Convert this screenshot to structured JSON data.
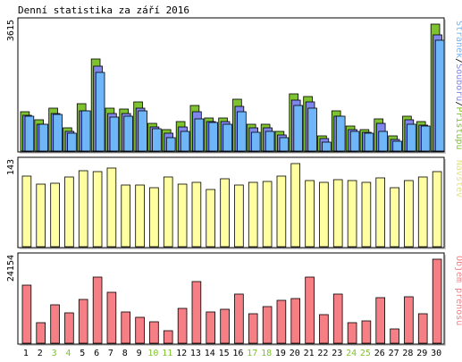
{
  "title": "Denní statistika za září 2016",
  "colors": {
    "green": "#7fc230",
    "blue": "#7f86ec",
    "lightblue": "#6fb6f8",
    "yellow": "#ffffa2",
    "red": "#f67f85",
    "weekend": "#7fc230",
    "day": "#000000",
    "legend_green": "#7fc230",
    "legend_blue": "#7f86ec",
    "legend_lightblue": "#6fb6f8",
    "legend_yellow": "#e3e37f",
    "legend_red": "#f67f85",
    "border": "#000000"
  },
  "chart_data": [
    {
      "type": "bar",
      "y_max_label": "3615",
      "ylim": [
        0,
        3615
      ],
      "legend": [
        "Stránek",
        "Souborů",
        "Přístupů"
      ],
      "categories": [
        "1",
        "2",
        "3",
        "4",
        "5",
        "6",
        "7",
        "8",
        "9",
        "10",
        "11",
        "12",
        "13",
        "14",
        "15",
        "16",
        "17",
        "18",
        "19",
        "20",
        "21",
        "22",
        "23",
        "24",
        "25",
        "26",
        "27",
        "28",
        "29",
        "30"
      ],
      "series": [
        {
          "name": "Přístupů",
          "values": [
            1110,
            900,
            1230,
            650,
            1360,
            2620,
            1230,
            1200,
            1410,
            800,
            620,
            840,
            1290,
            930,
            950,
            1470,
            760,
            770,
            560,
            1620,
            1560,
            430,
            1140,
            720,
            620,
            920,
            440,
            1000,
            850,
            3615
          ]
        },
        {
          "name": "Souborů",
          "values": [
            1010,
            770,
            1080,
            550,
            1140,
            2420,
            1070,
            1060,
            1210,
            690,
            510,
            700,
            1120,
            840,
            830,
            1280,
            670,
            650,
            460,
            1440,
            1410,
            350,
            1000,
            620,
            530,
            800,
            340,
            880,
            750,
            3310
          ]
        },
        {
          "name": "Stránek",
          "values": [
            1000,
            760,
            1050,
            520,
            1140,
            2230,
            970,
            1000,
            1150,
            640,
            380,
            560,
            920,
            820,
            760,
            1130,
            540,
            560,
            390,
            1300,
            1230,
            260,
            1000,
            560,
            500,
            570,
            270,
            770,
            710,
            3160
          ]
        }
      ]
    },
    {
      "type": "bar",
      "y_max_label": "143",
      "ylim": [
        0,
        143
      ],
      "legend": [
        "Návštěv"
      ],
      "categories": [
        "1",
        "2",
        "3",
        "4",
        "5",
        "6",
        "7",
        "8",
        "9",
        "10",
        "11",
        "12",
        "13",
        "14",
        "15",
        "16",
        "17",
        "18",
        "19",
        "20",
        "21",
        "22",
        "23",
        "24",
        "25",
        "26",
        "27",
        "28",
        "29",
        "30"
      ],
      "series": [
        {
          "name": "Návštěv",
          "values": [
            121,
            108,
            109,
            120,
            131,
            129,
            135,
            106,
            106,
            101,
            120,
            108,
            111,
            99,
            117,
            106,
            111,
            112,
            122,
            143,
            114,
            111,
            115,
            114,
            111,
            118,
            101,
            114,
            120,
            129
          ]
        }
      ]
    },
    {
      "type": "bar",
      "y_max_label": "24154",
      "ylim": [
        0,
        24154
      ],
      "legend": [
        "Objem přenosu"
      ],
      "categories": [
        "1",
        "2",
        "3",
        "4",
        "5",
        "6",
        "7",
        "8",
        "9",
        "10",
        "11",
        "12",
        "13",
        "14",
        "15",
        "16",
        "17",
        "18",
        "19",
        "20",
        "21",
        "22",
        "23",
        "24",
        "25",
        "26",
        "27",
        "28",
        "29",
        "30"
      ],
      "series": [
        {
          "name": "Objem přenosu",
          "values": [
            16600,
            5900,
            11100,
            8700,
            12700,
            19100,
            14700,
            9000,
            7400,
            6100,
            3500,
            9900,
            17700,
            9100,
            9700,
            14200,
            8400,
            10500,
            12400,
            12900,
            19100,
            8100,
            14100,
            5900,
            6400,
            13000,
            4100,
            13300,
            8500,
            24154
          ]
        }
      ]
    }
  ],
  "days": [
    {
      "label": "1",
      "weekend": false
    },
    {
      "label": "2",
      "weekend": false
    },
    {
      "label": "3",
      "weekend": true
    },
    {
      "label": "4",
      "weekend": true
    },
    {
      "label": "5",
      "weekend": false
    },
    {
      "label": "6",
      "weekend": false
    },
    {
      "label": "7",
      "weekend": false
    },
    {
      "label": "8",
      "weekend": false
    },
    {
      "label": "9",
      "weekend": false
    },
    {
      "label": "10",
      "weekend": true
    },
    {
      "label": "11",
      "weekend": true
    },
    {
      "label": "12",
      "weekend": false
    },
    {
      "label": "13",
      "weekend": false
    },
    {
      "label": "14",
      "weekend": false
    },
    {
      "label": "15",
      "weekend": false
    },
    {
      "label": "16",
      "weekend": false
    },
    {
      "label": "17",
      "weekend": true
    },
    {
      "label": "18",
      "weekend": true
    },
    {
      "label": "19",
      "weekend": false
    },
    {
      "label": "20",
      "weekend": false
    },
    {
      "label": "21",
      "weekend": false
    },
    {
      "label": "22",
      "weekend": false
    },
    {
      "label": "23",
      "weekend": false
    },
    {
      "label": "24",
      "weekend": true
    },
    {
      "label": "25",
      "weekend": true
    },
    {
      "label": "26",
      "weekend": false
    },
    {
      "label": "27",
      "weekend": false
    },
    {
      "label": "28",
      "weekend": false
    },
    {
      "label": "29",
      "weekend": false
    },
    {
      "label": "30",
      "weekend": false
    }
  ]
}
